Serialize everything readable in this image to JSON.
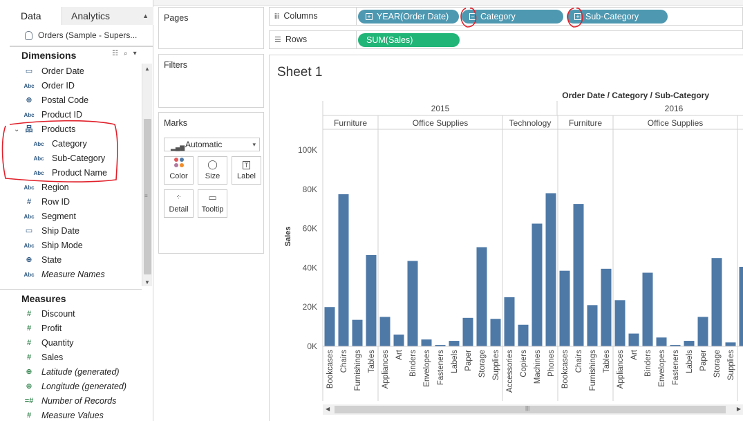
{
  "data_pane": {
    "tab_data": "Data",
    "tab_analytics": "Analytics",
    "datasource": "Orders (Sample - Supers...",
    "dimensions_title": "Dimensions",
    "measures_title": "Measures",
    "dimensions": [
      {
        "label": "Order Date",
        "icon": "calendar-icon"
      },
      {
        "label": "Order ID",
        "icon": "abc-icon"
      },
      {
        "label": "Postal Code",
        "icon": "globe-icon"
      },
      {
        "label": "Product ID",
        "icon": "abc-icon"
      },
      {
        "label": "Products",
        "icon": "hierarchy-icon"
      },
      {
        "label": "Category",
        "icon": "abc-icon"
      },
      {
        "label": "Sub-Category",
        "icon": "abc-icon"
      },
      {
        "label": "Product Name",
        "icon": "abc-icon"
      },
      {
        "label": "Region",
        "icon": "abc-icon"
      },
      {
        "label": "Row ID",
        "icon": "hash-icon"
      },
      {
        "label": "Segment",
        "icon": "abc-icon"
      },
      {
        "label": "Ship Date",
        "icon": "calendar-icon"
      },
      {
        "label": "Ship Mode",
        "icon": "abc-icon"
      },
      {
        "label": "State",
        "icon": "globe-icon"
      },
      {
        "label": "Measure Names",
        "icon": "abc-icon"
      }
    ],
    "measures": [
      {
        "label": "Discount",
        "icon": "hash-icon"
      },
      {
        "label": "Profit",
        "icon": "hash-icon"
      },
      {
        "label": "Quantity",
        "icon": "hash-icon"
      },
      {
        "label": "Sales",
        "icon": "hash-icon"
      },
      {
        "label": "Latitude (generated)",
        "icon": "globe-icon"
      },
      {
        "label": "Longitude (generated)",
        "icon": "globe-icon"
      },
      {
        "label": "Number of Records",
        "icon": "hash-equals-icon"
      },
      {
        "label": "Measure Values",
        "icon": "hash-icon"
      }
    ]
  },
  "cards": {
    "pages": "Pages",
    "filters": "Filters",
    "marks": "Marks",
    "mark_type": "Automatic",
    "buttons": [
      "Color",
      "Size",
      "Label",
      "Detail",
      "Tooltip"
    ]
  },
  "shelves": {
    "columns_label": "Columns",
    "rows_label": "Rows",
    "column_pills": [
      "YEAR(Order Date)",
      "Category",
      "Sub-Category"
    ],
    "row_pills": [
      "SUM(Sales)"
    ]
  },
  "view": {
    "sheet_title": "Sheet 1",
    "header_title": "Order Date / Category / Sub-Category"
  },
  "colors": {
    "bar": "#4e79a7",
    "dim_pill": "#4e98b1",
    "measure_pill": "#21b577",
    "annotation": "#e0202a"
  },
  "chart_data": {
    "type": "bar",
    "ylabel": "Sales",
    "ylim": [
      0,
      110000
    ],
    "yticks": [
      0,
      20000,
      40000,
      60000,
      80000,
      100000
    ],
    "ytick_labels": [
      "0K",
      "20K",
      "40K",
      "60K",
      "80K",
      "100K"
    ],
    "years": [
      {
        "year": "2015",
        "categories": [
          {
            "name": "Furniture",
            "subs": [
              {
                "name": "Bookcases",
                "value": 20000
              },
              {
                "name": "Chairs",
                "value": 77500
              },
              {
                "name": "Furnishings",
                "value": 13500
              },
              {
                "name": "Tables",
                "value": 46500
              }
            ]
          },
          {
            "name": "Office Supplies",
            "subs": [
              {
                "name": "Appliances",
                "value": 15000
              },
              {
                "name": "Art",
                "value": 6000
              },
              {
                "name": "Binders",
                "value": 43500
              },
              {
                "name": "Envelopes",
                "value": 3500
              },
              {
                "name": "Fasteners",
                "value": 700
              },
              {
                "name": "Labels",
                "value": 2800
              },
              {
                "name": "Paper",
                "value": 14500
              },
              {
                "name": "Storage",
                "value": 50500
              },
              {
                "name": "Supplies",
                "value": 14000
              }
            ]
          },
          {
            "name": "Technology",
            "subs": [
              {
                "name": "Accessories",
                "value": 25000
              },
              {
                "name": "Copiers",
                "value": 11000
              },
              {
                "name": "Machines",
                "value": 62500
              },
              {
                "name": "Phones",
                "value": 78000
              }
            ]
          }
        ]
      },
      {
        "year": "2016",
        "categories": [
          {
            "name": "Furniture",
            "subs": [
              {
                "name": "Bookcases",
                "value": 38500
              },
              {
                "name": "Chairs",
                "value": 72500
              },
              {
                "name": "Furnishings",
                "value": 21000
              },
              {
                "name": "Tables",
                "value": 39500
              }
            ]
          },
          {
            "name": "Office Supplies",
            "subs": [
              {
                "name": "Appliances",
                "value": 23500
              },
              {
                "name": "Art",
                "value": 6500
              },
              {
                "name": "Binders",
                "value": 37500
              },
              {
                "name": "Envelopes",
                "value": 4500
              },
              {
                "name": "Fasteners",
                "value": 700
              },
              {
                "name": "Labels",
                "value": 2800
              },
              {
                "name": "Paper",
                "value": 15000
              },
              {
                "name": "Storage",
                "value": 45000
              },
              {
                "name": "Supplies",
                "value": 2000
              }
            ]
          },
          {
            "name": "",
            "subs": [
              {
                "name": "",
                "value": 40500
              }
            ]
          }
        ]
      }
    ]
  }
}
